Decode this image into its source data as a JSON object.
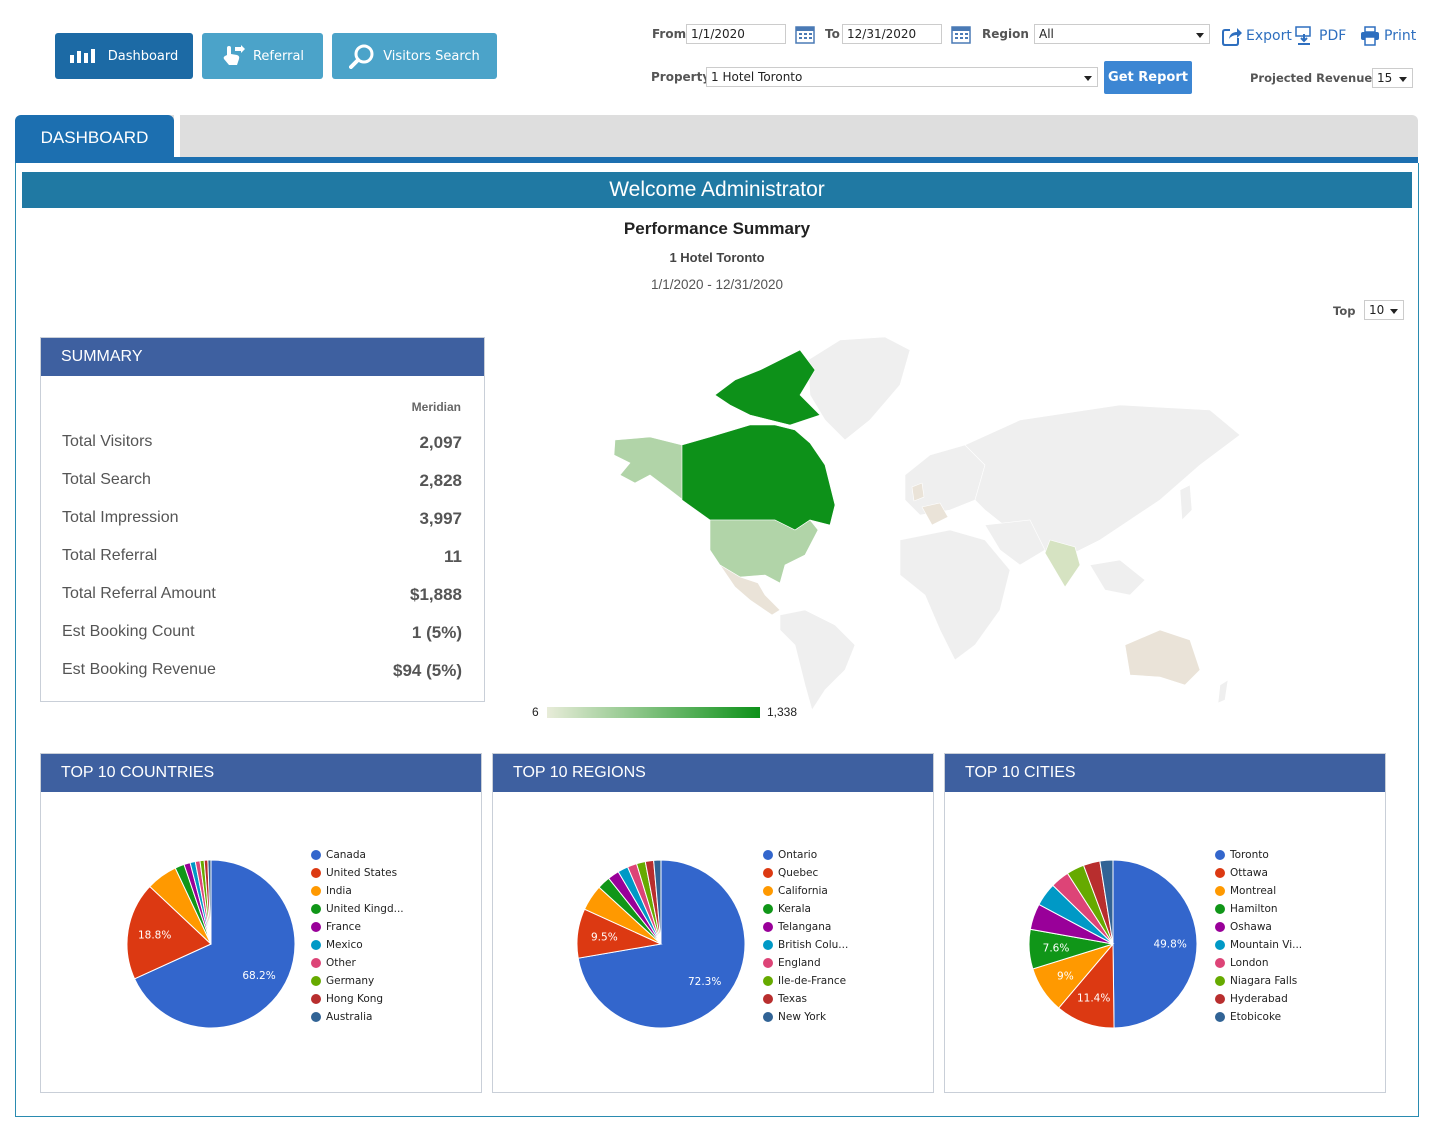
{
  "nav": {
    "dashboard": "Dashboard",
    "referral": "Referral",
    "visitors_search": "Visitors Search"
  },
  "filters": {
    "from_label": "From",
    "from_value": "1/1/2020",
    "to_label": "To",
    "to_value": "12/31/2020",
    "region_label": "Region",
    "region_value": "All",
    "property_label": "Property",
    "property_value": "1 Hotel Toronto",
    "get_report": "Get Report",
    "projected_label": "Projected Revenue %",
    "projected_value": "15"
  },
  "tools": {
    "export": "Export",
    "pdf": "PDF",
    "print": "Print"
  },
  "tabs": {
    "dashboard": "DASHBOARD"
  },
  "welcome": "Welcome Administrator",
  "report": {
    "title": "Performance Summary",
    "property": "1 Hotel Toronto",
    "range": "1/1/2020 - 12/31/2020",
    "top_label": "Top",
    "top_value": "10"
  },
  "summary": {
    "title": "SUMMARY",
    "column": "Meridian",
    "rows": [
      {
        "label": "Total Visitors",
        "value": "2,097"
      },
      {
        "label": "Total Search",
        "value": "2,828"
      },
      {
        "label": "Total Impression",
        "value": "3,997"
      },
      {
        "label": "Total Referral",
        "value": "11"
      },
      {
        "label": "Total Referral Amount",
        "value": "$1,888"
      },
      {
        "label": "Est Booking Count",
        "value": "1 (5%)"
      },
      {
        "label": "Est Booking Revenue",
        "value": "$94 (5%)"
      }
    ]
  },
  "map": {
    "min": "6",
    "max": "1,338",
    "color_low": "#e8ecd9",
    "color_high": "#0d9119"
  },
  "colors": [
    "#3366cc",
    "#dc3912",
    "#ff9900",
    "#109618",
    "#990099",
    "#0099c6",
    "#dd4477",
    "#66aa00",
    "#b82e2e",
    "#316395"
  ],
  "chart_data": [
    {
      "type": "pie",
      "title": "TOP 10 COUNTRIES",
      "categories": [
        "Canada",
        "United States",
        "India",
        "United Kingd...",
        "France",
        "Mexico",
        "Other",
        "Germany",
        "Hong Kong",
        "Australia"
      ],
      "values": [
        68.2,
        18.8,
        6.0,
        1.8,
        1.2,
        1.0,
        0.9,
        0.8,
        0.7,
        0.6
      ],
      "labels": [
        "68.2%",
        "18.8%",
        "",
        "",
        "",
        "",
        "",
        "",
        "",
        ""
      ]
    },
    {
      "type": "pie",
      "title": "TOP 10 REGIONS",
      "categories": [
        "Ontario",
        "Quebec",
        "California",
        "Kerala",
        "Telangana",
        "British Colu...",
        "England",
        "Ile-de-France",
        "Texas",
        "New York"
      ],
      "values": [
        72.3,
        9.5,
        5.0,
        2.5,
        2.2,
        2.0,
        1.8,
        1.7,
        1.6,
        1.4
      ],
      "labels": [
        "72.3%",
        "9.5%",
        "",
        "",
        "",
        "",
        "",
        "",
        "",
        ""
      ]
    },
    {
      "type": "pie",
      "title": "TOP 10 CITIES",
      "categories": [
        "Toronto",
        "Ottawa",
        "Montreal",
        "Hamilton",
        "Oshawa",
        "Mountain Vi...",
        "London",
        "Niagara Falls",
        "Hyderabad",
        "Etobicoke"
      ],
      "values": [
        49.8,
        11.4,
        9.0,
        7.6,
        5.0,
        4.5,
        3.6,
        3.4,
        3.2,
        2.5
      ],
      "labels": [
        "49.8%",
        "11.4%",
        "9%",
        "7.6%",
        "",
        "",
        "",
        "",
        "",
        ""
      ]
    }
  ]
}
